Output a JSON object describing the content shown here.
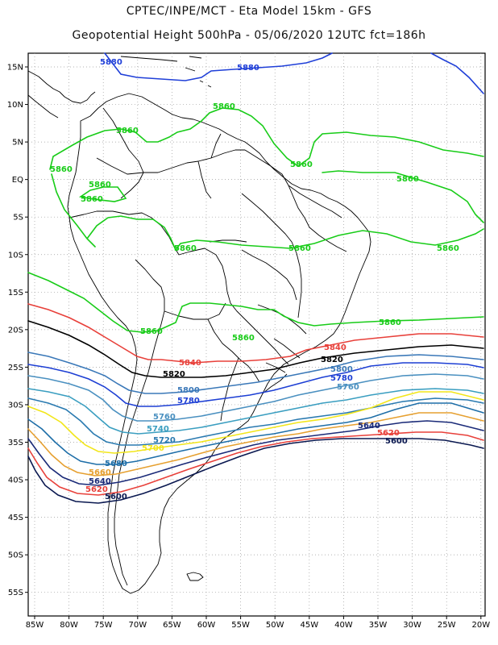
{
  "header": {
    "line1": "CPTEC/INPE/MCT -  Eta Model 15km - GFS",
    "line2": "Geopotential Height 500hPa - 05/06/2020 12UTC fct=186h"
  },
  "axes": {
    "lat_labels": [
      "15N",
      "10N",
      "5N",
      "EQ",
      "5S",
      "10S",
      "15S",
      "20S",
      "25S",
      "30S",
      "35S",
      "40S",
      "45S",
      "50S",
      "55S"
    ],
    "lon_labels": [
      "85W",
      "80W",
      "75W",
      "70W",
      "65W",
      "60W",
      "55W",
      "50W",
      "45W",
      "40W",
      "35W",
      "30W",
      "25W",
      "20W"
    ]
  },
  "colors": {
    "c5880": "#1f3fd8",
    "c5860": "#18cc18",
    "c5840": "#e8403a",
    "c5820": "#000000",
    "c5800": "#3a78b8",
    "c5780": "#1d3fd4",
    "c5760": "#4a90c0",
    "c5740": "#3a9ec0",
    "c5720": "#2a7ab0",
    "c5700": "#f2e61a",
    "c5680": "#1e6ea8",
    "c5660": "#e6a030",
    "c5640": "#1a2a78",
    "c5620": "#e8403a",
    "c5600": "#0a1850",
    "land": "#000000"
  },
  "contour_labels": [
    {
      "name": "5880-a",
      "text": "5880",
      "color": "c5880"
    },
    {
      "name": "5880-b",
      "text": "5880",
      "color": "c5880"
    },
    {
      "name": "5860-a",
      "text": "5860",
      "color": "c5860"
    },
    {
      "name": "5860-b",
      "text": "5860",
      "color": "c5860"
    },
    {
      "name": "5860-c",
      "text": "5860",
      "color": "c5860"
    },
    {
      "name": "5860-d",
      "text": "5860",
      "color": "c5860"
    },
    {
      "name": "5860-e",
      "text": "5860",
      "color": "c5860"
    },
    {
      "name": "5860-f",
      "text": "5860",
      "color": "c5860"
    },
    {
      "name": "5860-g",
      "text": "5860",
      "color": "c5860"
    },
    {
      "name": "5860-h",
      "text": "5860",
      "color": "c5860"
    },
    {
      "name": "5860-i",
      "text": "5860",
      "color": "c5860"
    },
    {
      "name": "5860-j",
      "text": "5860",
      "color": "c5860"
    },
    {
      "name": "5860-k",
      "text": "5860",
      "color": "c5860"
    },
    {
      "name": "5860-l",
      "text": "5860",
      "color": "c5860"
    },
    {
      "name": "5860-m",
      "text": "5860",
      "color": "c5860"
    },
    {
      "name": "5840-a",
      "text": "5840",
      "color": "c5840"
    },
    {
      "name": "5840-b",
      "text": "5840",
      "color": "c5840"
    },
    {
      "name": "5820-a",
      "text": "5820",
      "color": "c5820"
    },
    {
      "name": "5820-b",
      "text": "5820",
      "color": "c5820"
    },
    {
      "name": "5800-a",
      "text": "5800",
      "color": "c5800"
    },
    {
      "name": "5800-b",
      "text": "5800",
      "color": "c5800"
    },
    {
      "name": "5780-a",
      "text": "5780",
      "color": "c5780"
    },
    {
      "name": "5780-b",
      "text": "5780",
      "color": "c5780"
    },
    {
      "name": "5760-a",
      "text": "5760",
      "color": "c5760"
    },
    {
      "name": "5760-b",
      "text": "5760",
      "color": "c5760"
    },
    {
      "name": "5740",
      "text": "5740",
      "color": "c5740"
    },
    {
      "name": "5720",
      "text": "5720",
      "color": "c5720"
    },
    {
      "name": "5700",
      "text": "5700",
      "color": "c5700"
    },
    {
      "name": "5680",
      "text": "5680",
      "color": "c5680"
    },
    {
      "name": "5660",
      "text": "5660",
      "color": "c5660"
    },
    {
      "name": "5640-a",
      "text": "5640",
      "color": "c5640"
    },
    {
      "name": "5640-b",
      "text": "5640",
      "color": "c5640"
    },
    {
      "name": "5620-a",
      "text": "5620",
      "color": "c5620"
    },
    {
      "name": "5620-b",
      "text": "5620",
      "color": "c5620"
    },
    {
      "name": "5600-a",
      "text": "5600",
      "color": "c5600"
    },
    {
      "name": "5600-b",
      "text": "5600",
      "color": "c5600"
    }
  ]
}
